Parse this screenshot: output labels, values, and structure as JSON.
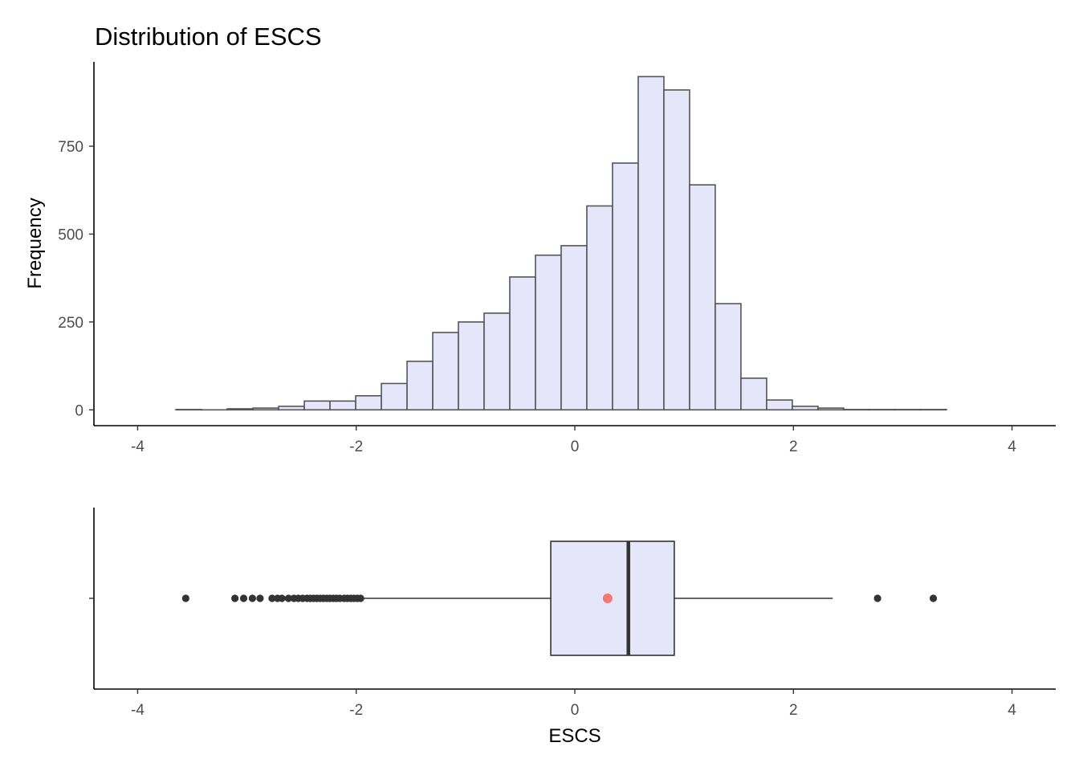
{
  "chart_data": [
    {
      "type": "bar",
      "title": "Distribution of ESCS",
      "xlabel": "",
      "ylabel": "Frequency",
      "xlim": [
        -4.4,
        4.4
      ],
      "ylim": [
        -45,
        990
      ],
      "xticks": [
        -4,
        -2,
        0,
        2,
        4
      ],
      "yticks": [
        0,
        250,
        500,
        750
      ],
      "bin_width": 0.235,
      "bins": [
        {
          "x0": -3.65,
          "x1": -3.415,
          "count": 1
        },
        {
          "x0": -3.415,
          "x1": -3.18,
          "count": 0
        },
        {
          "x0": -3.18,
          "x1": -2.945,
          "count": 3
        },
        {
          "x0": -2.945,
          "x1": -2.71,
          "count": 5
        },
        {
          "x0": -2.71,
          "x1": -2.475,
          "count": 10
        },
        {
          "x0": -2.475,
          "x1": -2.24,
          "count": 25
        },
        {
          "x0": -2.24,
          "x1": -2.005,
          "count": 25
        },
        {
          "x0": -2.005,
          "x1": -1.77,
          "count": 40
        },
        {
          "x0": -1.77,
          "x1": -1.535,
          "count": 75
        },
        {
          "x0": -1.535,
          "x1": -1.3,
          "count": 138
        },
        {
          "x0": -1.3,
          "x1": -1.065,
          "count": 220
        },
        {
          "x0": -1.065,
          "x1": -0.83,
          "count": 250
        },
        {
          "x0": -0.83,
          "x1": -0.595,
          "count": 275
        },
        {
          "x0": -0.595,
          "x1": -0.36,
          "count": 378
        },
        {
          "x0": -0.36,
          "x1": -0.125,
          "count": 440
        },
        {
          "x0": -0.125,
          "x1": 0.11,
          "count": 467
        },
        {
          "x0": 0.11,
          "x1": 0.345,
          "count": 580
        },
        {
          "x0": 0.345,
          "x1": 0.58,
          "count": 702
        },
        {
          "x0": 0.58,
          "x1": 0.815,
          "count": 948
        },
        {
          "x0": 0.815,
          "x1": 1.05,
          "count": 910
        },
        {
          "x0": 1.05,
          "x1": 1.285,
          "count": 640
        },
        {
          "x0": 1.285,
          "x1": 1.52,
          "count": 302
        },
        {
          "x0": 1.52,
          "x1": 1.755,
          "count": 90
        },
        {
          "x0": 1.755,
          "x1": 1.99,
          "count": 28
        },
        {
          "x0": 1.99,
          "x1": 2.225,
          "count": 10
        },
        {
          "x0": 2.225,
          "x1": 2.46,
          "count": 5
        },
        {
          "x0": 2.46,
          "x1": 2.695,
          "count": 1
        },
        {
          "x0": 2.695,
          "x1": 2.93,
          "count": 1
        },
        {
          "x0": 2.93,
          "x1": 3.165,
          "count": 1
        },
        {
          "x0": 3.165,
          "x1": 3.4,
          "count": 1
        }
      ],
      "fill_color": "#e6e6fa",
      "edge_color": "#555555",
      "grid": false
    },
    {
      "type": "boxplot",
      "xlabel": "ESCS",
      "ylabel": "",
      "xlim": [
        -4.4,
        4.4
      ],
      "xticks": [
        -4,
        -2,
        0,
        2,
        4
      ],
      "q1": -0.22,
      "median": 0.49,
      "q3": 0.91,
      "whisker_low": -1.94,
      "whisker_high": 2.36,
      "mean": 0.3,
      "outliers": [
        -3.56,
        -3.11,
        -3.03,
        -2.95,
        -2.88,
        -2.77,
        -2.72,
        -2.68,
        -2.62,
        -2.57,
        -2.53,
        -2.49,
        -2.45,
        -2.42,
        -2.39,
        -2.36,
        -2.33,
        -2.3,
        -2.27,
        -2.24,
        -2.21,
        -2.18,
        -2.15,
        -2.11,
        -2.08,
        -2.05,
        -2.02,
        -1.99,
        -1.96,
        2.77,
        3.28
      ],
      "box_fill": "#e6e6fa",
      "mean_color": "#f8766d",
      "line_color": "#333333",
      "grid": false
    }
  ]
}
